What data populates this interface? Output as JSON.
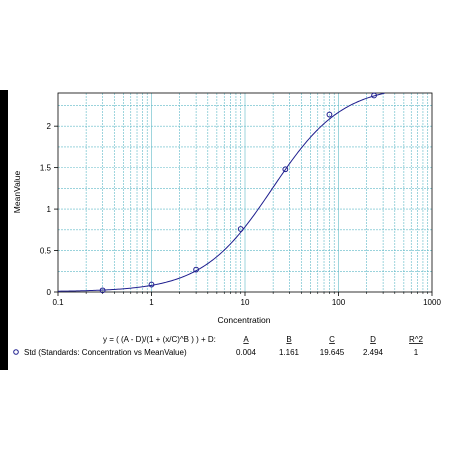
{
  "chart_data": {
    "type": "scatter",
    "xlabel": "Concentration",
    "ylabel": "MeanValue",
    "x_scale": "log",
    "xlim": [
      0.1,
      1000
    ],
    "ylim": [
      0,
      2.4
    ],
    "x_ticks": [
      "0.1",
      "1",
      "10",
      "100",
      "1000"
    ],
    "y_ticks": [
      "0",
      "0.5",
      "1",
      "1.5",
      "2"
    ],
    "grid": true,
    "series": [
      {
        "name": "Std (Standards: Concentration vs MeanValue)",
        "x": [
          0.3,
          1,
          3,
          9,
          27,
          80,
          240
        ],
        "y": [
          0.02,
          0.09,
          0.27,
          0.76,
          1.48,
          2.14,
          2.37
        ]
      }
    ],
    "fit": {
      "equation": "y = ( (A - D)/(1 + (x/C)^B ) ) + D:",
      "headers": [
        "A",
        "B",
        "C",
        "D",
        "R^2"
      ],
      "values": [
        "0.004",
        "1.161",
        "19.645",
        "2.494",
        "1"
      ],
      "params": {
        "A": 0.004,
        "B": 1.161,
        "C": 19.645,
        "D": 2.494
      }
    },
    "colors": {
      "curve": "#1f1f8f",
      "marker": "#1f1f8f",
      "grid": "#5fb9c7",
      "axis": "#000000"
    }
  }
}
